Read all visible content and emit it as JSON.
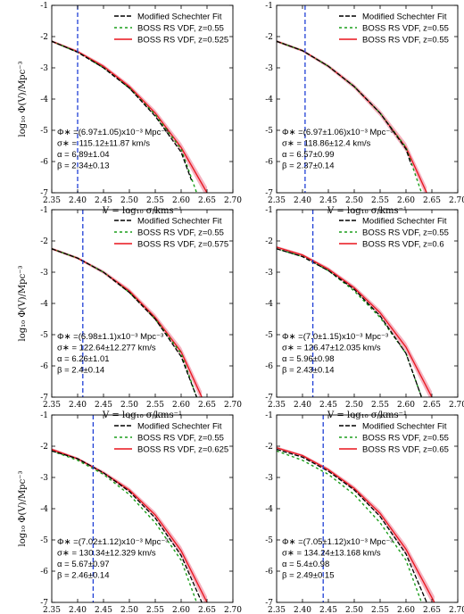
{
  "colors": {
    "fit": "#000000",
    "boss_055": "#1a9e1a",
    "boss_z": "#e8141c",
    "band": "#f3a6b6",
    "vline": "#1f3fd6"
  },
  "chart_data": [
    {
      "type": "line",
      "xlim": [
        2.35,
        2.7
      ],
      "ylim": [
        -7,
        -1
      ],
      "xticks": [
        "2.35",
        "2.40",
        "2.45",
        "2.50",
        "2.55",
        "2.60",
        "2.65",
        "2.70"
      ],
      "yticks": [
        "-1",
        "-2",
        "-3",
        "-4",
        "-5",
        "-6",
        "-7"
      ],
      "xlabel": "V = log₁₀ σ/kms⁻¹",
      "ylabel": "log₁₀ Φ(V)/Mpc⁻³",
      "legend": [
        "Modified Schechter Fit",
        "BOSS RS VDF, z=0.55",
        "BOSS RS VDF, z=0.525"
      ],
      "vline_x": 2.4,
      "series": [
        {
          "name": "Modified Schechter Fit",
          "x": [
            2.35,
            2.4,
            2.45,
            2.5,
            2.55,
            2.6,
            2.62
          ],
          "y": [
            -2.15,
            -2.5,
            -3.0,
            -3.65,
            -4.55,
            -5.7,
            -6.6
          ]
        },
        {
          "name": "BOSS RS VDF, z=0.55",
          "x": [
            2.35,
            2.4,
            2.45,
            2.5,
            2.55,
            2.6,
            2.63
          ],
          "y": [
            -2.15,
            -2.5,
            -3.0,
            -3.65,
            -4.5,
            -5.6,
            -7.0
          ]
        },
        {
          "name": "BOSS RS VDF, z=0.525",
          "x": [
            2.35,
            2.4,
            2.45,
            2.5,
            2.55,
            2.6,
            2.65
          ],
          "y": [
            -2.15,
            -2.48,
            -2.95,
            -3.6,
            -4.45,
            -5.55,
            -7.0
          ]
        }
      ],
      "annotation": [
        "Φ∗ =(6.97±1.05)x10⁻³ Mpc⁻³",
        "σ∗ = 115.12±11.87 km/s",
        "α = 6.89±1.04",
        "β = 2.34±0.13"
      ]
    },
    {
      "type": "line",
      "xlim": [
        2.35,
        2.7
      ],
      "ylim": [
        -7,
        -1
      ],
      "xticks": [
        "2.35",
        "2.40",
        "2.45",
        "2.50",
        "2.55",
        "2.60",
        "2.65",
        "2.70"
      ],
      "yticks": [
        "-1",
        "-2",
        "-3",
        "-4",
        "-5",
        "-6",
        "-7"
      ],
      "xlabel": "V = log₁₀ σ/kms⁻¹",
      "ylabel": "",
      "legend": [
        "Modified Schechter Fit",
        "BOSS RS VDF, z=0.55",
        "BOSS RS VDF, z=0.55"
      ],
      "vline_x": 2.405,
      "series": [
        {
          "name": "Modified Schechter Fit",
          "x": [
            2.35,
            2.4,
            2.45,
            2.5,
            2.55,
            2.6,
            2.61
          ],
          "y": [
            -2.15,
            -2.45,
            -2.95,
            -3.6,
            -4.45,
            -5.6,
            -6.1
          ]
        },
        {
          "name": "BOSS RS VDF, z=0.55",
          "x": [
            2.35,
            2.4,
            2.45,
            2.5,
            2.55,
            2.6,
            2.63
          ],
          "y": [
            -2.15,
            -2.45,
            -2.95,
            -3.6,
            -4.45,
            -5.55,
            -7.0
          ]
        },
        {
          "name": "BOSS RS VDF, z=0.55",
          "x": [
            2.35,
            2.4,
            2.45,
            2.5,
            2.55,
            2.6,
            2.64
          ],
          "y": [
            -2.15,
            -2.45,
            -2.95,
            -3.6,
            -4.45,
            -5.55,
            -7.0
          ]
        }
      ],
      "annotation": [
        "Φ∗ =(6.97±1.06)x10⁻³ Mpc⁻³",
        "σ∗ = 118.86±12.4 km/s",
        "α = 6.57±0.99",
        "β = 2.37±0.14"
      ]
    },
    {
      "type": "line",
      "xlim": [
        2.35,
        2.7
      ],
      "ylim": [
        -7,
        -1
      ],
      "xticks": [
        "2.35",
        "2.40",
        "2.45",
        "2.50",
        "2.55",
        "2.60",
        "2.65",
        "2.70"
      ],
      "yticks": [
        "-1",
        "-2",
        "-3",
        "-4",
        "-5",
        "-6",
        "-7"
      ],
      "xlabel": "V = log₁₀ σ/kms⁻¹",
      "ylabel": "log₁₀ Φ(V)/Mpc⁻³",
      "legend": [
        "Modified Schechter Fit",
        "BOSS RS VDF, z=0.55",
        "BOSS RS VDF, z=0.575"
      ],
      "vline_x": 2.41,
      "series": [
        {
          "name": "Modified Schechter Fit",
          "x": [
            2.35,
            2.4,
            2.45,
            2.5,
            2.55,
            2.6,
            2.63
          ],
          "y": [
            -2.25,
            -2.55,
            -3.0,
            -3.65,
            -4.5,
            -5.7,
            -7.0
          ]
        },
        {
          "name": "BOSS RS VDF, z=0.55",
          "x": [
            2.35,
            2.4,
            2.45,
            2.5,
            2.55,
            2.6,
            2.63
          ],
          "y": [
            -2.25,
            -2.55,
            -3.0,
            -3.65,
            -4.5,
            -5.6,
            -7.0
          ]
        },
        {
          "name": "BOSS RS VDF, z=0.575",
          "x": [
            2.35,
            2.4,
            2.45,
            2.5,
            2.55,
            2.6,
            2.64
          ],
          "y": [
            -2.25,
            -2.55,
            -3.0,
            -3.6,
            -4.45,
            -5.55,
            -7.0
          ]
        }
      ],
      "annotation": [
        "Φ∗ =(6.98±1.1)x10⁻³ Mpc⁻³",
        "σ∗ = 122.64±12.277 km/s",
        "α = 6.26±1.01",
        "β = 2.4±0.14"
      ]
    },
    {
      "type": "line",
      "xlim": [
        2.35,
        2.7
      ],
      "ylim": [
        -7,
        -1
      ],
      "xticks": [
        "2.35",
        "2.40",
        "2.45",
        "2.50",
        "2.55",
        "2.60",
        "2.65",
        "2.70"
      ],
      "yticks": [
        "-1",
        "-2",
        "-3",
        "-4",
        "-5",
        "-6",
        "-7"
      ],
      "xlabel": "V = log₁₀ σ/kms⁻¹",
      "ylabel": "",
      "legend": [
        "Modified Schechter Fit",
        "BOSS RS VDF, z=0.55",
        "BOSS RS VDF, z=0.6"
      ],
      "vline_x": 2.42,
      "series": [
        {
          "name": "Modified Schechter Fit",
          "x": [
            2.35,
            2.4,
            2.45,
            2.5,
            2.55,
            2.6,
            2.63
          ],
          "y": [
            -2.25,
            -2.5,
            -2.95,
            -3.55,
            -4.4,
            -5.6,
            -7.0
          ]
        },
        {
          "name": "BOSS RS VDF, z=0.55",
          "x": [
            2.35,
            2.4,
            2.45,
            2.5,
            2.55,
            2.6,
            2.63
          ],
          "y": [
            -2.25,
            -2.5,
            -2.95,
            -3.6,
            -4.45,
            -5.6,
            -7.0
          ]
        },
        {
          "name": "BOSS RS VDF, z=0.6",
          "x": [
            2.35,
            2.4,
            2.45,
            2.5,
            2.55,
            2.6,
            2.65
          ],
          "y": [
            -2.2,
            -2.45,
            -2.9,
            -3.5,
            -4.3,
            -5.4,
            -7.0
          ]
        }
      ],
      "annotation": [
        "Φ∗ =(7.0±1.15)x10⁻³ Mpc⁻³",
        "σ∗ = 126.47±12.035 km/s",
        "α = 5.96±0.98",
        "β = 2.43±0.14"
      ]
    },
    {
      "type": "line",
      "xlim": [
        2.35,
        2.7
      ],
      "ylim": [
        -7,
        -1
      ],
      "xticks": [
        "2.35",
        "2.40",
        "2.45",
        "2.50",
        "2.55",
        "2.60",
        "2.65",
        "2.70"
      ],
      "yticks": [
        "-1",
        "-2",
        "-3",
        "-4",
        "-5",
        "-6",
        "-7"
      ],
      "xlabel": "V = log₁₀ σ/kms⁻¹",
      "ylabel": "log₁₀ Φ(V)/Mpc⁻³",
      "legend": [
        "Modified Schechter Fit",
        "BOSS RS VDF, z=0.55",
        "BOSS RS VDF, z=0.625"
      ],
      "vline_x": 2.43,
      "series": [
        {
          "name": "Modified Schechter Fit",
          "x": [
            2.35,
            2.4,
            2.45,
            2.5,
            2.55,
            2.6,
            2.64
          ],
          "y": [
            -2.15,
            -2.4,
            -2.85,
            -3.45,
            -4.3,
            -5.5,
            -7.0
          ]
        },
        {
          "name": "BOSS RS VDF, z=0.55",
          "x": [
            2.35,
            2.4,
            2.45,
            2.5,
            2.55,
            2.6,
            2.63
          ],
          "y": [
            -2.15,
            -2.45,
            -2.9,
            -3.55,
            -4.45,
            -5.65,
            -7.0
          ]
        },
        {
          "name": "BOSS RS VDF, z=0.625",
          "x": [
            2.35,
            2.4,
            2.45,
            2.5,
            2.55,
            2.6,
            2.65
          ],
          "y": [
            -2.1,
            -2.4,
            -2.85,
            -3.4,
            -4.2,
            -5.35,
            -7.0
          ]
        }
      ],
      "annotation": [
        "Φ∗ =(7.02±1.12)x10⁻³ Mpc⁻³",
        "σ∗ = 130.34±12.329 km/s",
        "α = 5.67±0.97",
        "β = 2.46±0.14"
      ]
    },
    {
      "type": "line",
      "xlim": [
        2.35,
        2.7
      ],
      "ylim": [
        -7,
        -1
      ],
      "xticks": [
        "2.35",
        "2.40",
        "2.45",
        "2.50",
        "2.55",
        "2.60",
        "2.65",
        "2.70"
      ],
      "yticks": [
        "-1",
        "-2",
        "-3",
        "-4",
        "-5",
        "-6",
        "-7"
      ],
      "xlabel": "V = log₁₀ σ/kms⁻¹",
      "ylabel": "",
      "legend": [
        "Modified Schechter Fit",
        "BOSS RS VDF, z=0.55",
        "BOSS RS VDF, z=0.65"
      ],
      "vline_x": 2.44,
      "series": [
        {
          "name": "Modified Schechter Fit",
          "x": [
            2.35,
            2.4,
            2.45,
            2.5,
            2.55,
            2.6,
            2.64
          ],
          "y": [
            -2.1,
            -2.35,
            -2.8,
            -3.4,
            -4.25,
            -5.45,
            -7.0
          ]
        },
        {
          "name": "BOSS RS VDF, z=0.55",
          "x": [
            2.35,
            2.4,
            2.45,
            2.5,
            2.55,
            2.6,
            2.63
          ],
          "y": [
            -2.15,
            -2.45,
            -2.9,
            -3.55,
            -4.45,
            -5.65,
            -7.0
          ]
        },
        {
          "name": "BOSS RS VDF, z=0.65",
          "x": [
            2.35,
            2.4,
            2.45,
            2.5,
            2.55,
            2.6,
            2.655
          ],
          "y": [
            -2.05,
            -2.3,
            -2.75,
            -3.35,
            -4.15,
            -5.3,
            -7.0
          ]
        }
      ],
      "annotation": [
        "Φ∗ =(7.05±1.12)x10⁻³ Mpc⁻³",
        "σ∗ = 134.24±13.168 km/s",
        "α = 5.4±0.98",
        "β = 2.49±0.15"
      ]
    }
  ]
}
